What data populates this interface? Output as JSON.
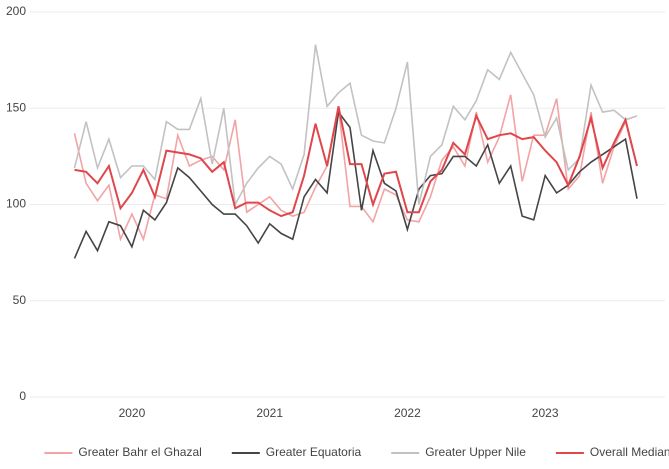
{
  "chart_data": {
    "type": "line",
    "x": [
      2019.583,
      2019.667,
      2019.75,
      2019.833,
      2019.917,
      2020.0,
      2020.083,
      2020.167,
      2020.25,
      2020.333,
      2020.417,
      2020.5,
      2020.583,
      2020.667,
      2020.75,
      2020.833,
      2020.917,
      2021.0,
      2021.083,
      2021.167,
      2021.25,
      2021.333,
      2021.417,
      2021.5,
      2021.583,
      2021.667,
      2021.75,
      2021.833,
      2021.917,
      2022.0,
      2022.083,
      2022.167,
      2022.25,
      2022.333,
      2022.417,
      2022.5,
      2022.583,
      2022.667,
      2022.75,
      2022.833,
      2022.917,
      2023.0,
      2023.083,
      2023.167,
      2023.25,
      2023.333,
      2023.417,
      2023.5,
      2023.583,
      2023.667
    ],
    "xlim": [
      2019.26,
      2023.87
    ],
    "xticks": [
      2020,
      2021,
      2022,
      2023
    ],
    "ylim": [
      0,
      200
    ],
    "yticks": [
      0,
      50,
      100,
      150,
      200
    ],
    "grid": true,
    "legend": "bottom",
    "series": [
      {
        "name": "Greater Bahr el Ghazal",
        "color": "#f2a3a5",
        "values": [
          137,
          111,
          102,
          110,
          82,
          95,
          82,
          105,
          103,
          136,
          120,
          123,
          125,
          118,
          144,
          96,
          100,
          104,
          97,
          94,
          96,
          109,
          120,
          150,
          99,
          99,
          91,
          108,
          105,
          92,
          91,
          104,
          123,
          130,
          120,
          148,
          122,
          135,
          157,
          112,
          136,
          136,
          155,
          108,
          115,
          148,
          111,
          130,
          143,
          120
        ]
      },
      {
        "name": "Greater Equatoria",
        "color": "#454545",
        "values": [
          72,
          86,
          76,
          91,
          89,
          78,
          97,
          92,
          101,
          119,
          114,
          107,
          100,
          95,
          95,
          89,
          80,
          90,
          85,
          82,
          104,
          113,
          106,
          148,
          140,
          97,
          128,
          111,
          107,
          87,
          108,
          115,
          116,
          125,
          125,
          120,
          131,
          111,
          120,
          94,
          92,
          115,
          106,
          110,
          117,
          122,
          126,
          130,
          134,
          103
        ]
      },
      {
        "name": "Greater Upper Nile",
        "color": "#c2c2c2",
        "values": [
          119,
          143,
          119,
          134,
          114,
          120,
          120,
          113,
          143,
          139,
          139,
          155,
          121,
          150,
          100,
          111,
          119,
          125,
          121,
          108,
          126,
          183,
          151,
          158,
          163,
          136,
          133,
          132,
          150,
          174,
          100,
          125,
          131,
          151,
          144,
          154,
          170,
          165,
          179,
          168,
          157,
          135,
          145,
          118,
          124,
          162,
          148,
          149,
          144,
          146
        ]
      },
      {
        "name": "Overall Median",
        "color": "#e0474c",
        "values": [
          118,
          117,
          111,
          120,
          98,
          106,
          118,
          104,
          128,
          127,
          126,
          124,
          117,
          122,
          98,
          101,
          101,
          97,
          94,
          96,
          115,
          142,
          120,
          151,
          121,
          121,
          100,
          116,
          117,
          96,
          96,
          112,
          118,
          132,
          126,
          146,
          134,
          136,
          137,
          134,
          135,
          128,
          122,
          110,
          125,
          145,
          119,
          132,
          144,
          120
        ]
      }
    ]
  }
}
